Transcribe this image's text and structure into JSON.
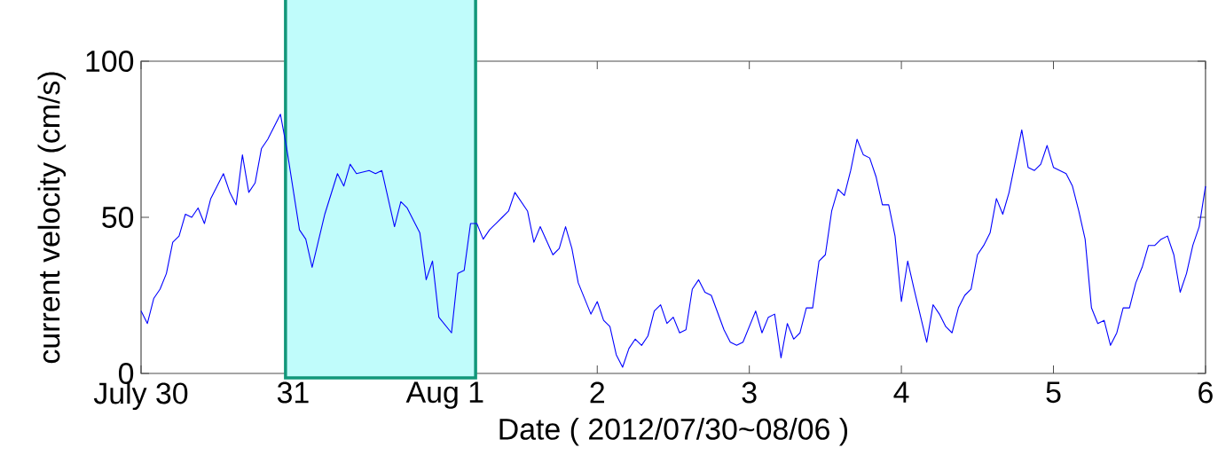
{
  "chart_data": {
    "type": "line",
    "xlabel": "Date ( 2012/07/30~08/06 )",
    "ylabel": "current velocity (cm/s)",
    "xlim": [
      "2012-07-30",
      "2012-08-06"
    ],
    "ylim": [
      0,
      100
    ],
    "xticks": [
      {
        "value": "2012-07-30",
        "label": "July 30"
      },
      {
        "value": "2012-07-31",
        "label": "31"
      },
      {
        "value": "2012-08-01",
        "label": "Aug 1"
      },
      {
        "value": "2012-08-02",
        "label": "2"
      },
      {
        "value": "2012-08-03",
        "label": "3"
      },
      {
        "value": "2012-08-04",
        "label": "4"
      },
      {
        "value": "2012-08-05",
        "label": "5"
      },
      {
        "value": "2012-08-06",
        "label": "6"
      }
    ],
    "yticks": [
      0,
      50,
      100
    ],
    "grid": false,
    "bands": [
      {
        "axis": "x",
        "from": "2012-07-30T22:48",
        "to": "2012-08-01T04:48",
        "color": "#12977a"
      }
    ],
    "series": [
      {
        "color": "#0000ff",
        "x": [
          "2012-07-30T00:00",
          "2012-07-30T01:00",
          "2012-07-30T02:00",
          "2012-07-30T03:00",
          "2012-07-30T04:00",
          "2012-07-30T05:00",
          "2012-07-30T06:00",
          "2012-07-30T07:00",
          "2012-07-30T08:00",
          "2012-07-30T09:00",
          "2012-07-30T10:00",
          "2012-07-30T11:00",
          "2012-07-30T13:00",
          "2012-07-30T14:00",
          "2012-07-30T15:00",
          "2012-07-30T16:00",
          "2012-07-30T17:00",
          "2012-07-30T18:00",
          "2012-07-30T19:00",
          "2012-07-30T20:00",
          "2012-07-30T22:00",
          "2012-07-30T23:00",
          "2012-07-31T01:00",
          "2012-07-31T02:00",
          "2012-07-31T03:00",
          "2012-07-31T05:00",
          "2012-07-31T07:00",
          "2012-07-31T08:00",
          "2012-07-31T09:00",
          "2012-07-31T10:00",
          "2012-07-31T12:00",
          "2012-07-31T13:00",
          "2012-07-31T14:00",
          "2012-07-31T16:00",
          "2012-07-31T17:00",
          "2012-07-31T18:00",
          "2012-07-31T20:00",
          "2012-07-31T21:00",
          "2012-07-31T22:00",
          "2012-07-31T23:00",
          "2012-08-01T01:00",
          "2012-08-01T02:00",
          "2012-08-01T03:00",
          "2012-08-01T04:00",
          "2012-08-01T05:00",
          "2012-08-01T06:00",
          "2012-08-01T07:00",
          "2012-08-01T08:00",
          "2012-08-01T09:00",
          "2012-08-01T10:00",
          "2012-08-01T11:00",
          "2012-08-01T13:00",
          "2012-08-01T14:00",
          "2012-08-01T15:00",
          "2012-08-01T17:00",
          "2012-08-01T18:00",
          "2012-08-01T19:00",
          "2012-08-01T20:00",
          "2012-08-01T21:00",
          "2012-08-01T23:00",
          "2012-08-02T00:00",
          "2012-08-02T01:00",
          "2012-08-02T02:00",
          "2012-08-02T03:00",
          "2012-08-02T04:00",
          "2012-08-02T05:00",
          "2012-08-02T06:00",
          "2012-08-02T07:00",
          "2012-08-02T08:00",
          "2012-08-02T09:00",
          "2012-08-02T10:00",
          "2012-08-02T11:00",
          "2012-08-02T12:00",
          "2012-08-02T13:00",
          "2012-08-02T14:00",
          "2012-08-02T15:00",
          "2012-08-02T16:00",
          "2012-08-02T17:00",
          "2012-08-02T18:00",
          "2012-08-02T20:00",
          "2012-08-02T21:00",
          "2012-08-02T22:00",
          "2012-08-02T23:00",
          "2012-08-03T01:00",
          "2012-08-03T02:00",
          "2012-08-03T03:00",
          "2012-08-03T04:00",
          "2012-08-03T05:00",
          "2012-08-03T06:00",
          "2012-08-03T07:00",
          "2012-08-03T08:00",
          "2012-08-03T09:00",
          "2012-08-03T10:00",
          "2012-08-03T11:00",
          "2012-08-03T12:00",
          "2012-08-03T13:00",
          "2012-08-03T14:00",
          "2012-08-03T15:00",
          "2012-08-03T16:00",
          "2012-08-03T17:00",
          "2012-08-03T18:00",
          "2012-08-03T19:00",
          "2012-08-03T20:00",
          "2012-08-03T21:00",
          "2012-08-03T22:00",
          "2012-08-03T23:00",
          "2012-08-04T00:00",
          "2012-08-04T01:00",
          "2012-08-04T02:00",
          "2012-08-04T04:00",
          "2012-08-04T05:00",
          "2012-08-04T06:00",
          "2012-08-04T07:00",
          "2012-08-04T08:00",
          "2012-08-04T09:00",
          "2012-08-04T10:00",
          "2012-08-04T11:00",
          "2012-08-04T12:00",
          "2012-08-04T13:00",
          "2012-08-04T14:00",
          "2012-08-04T15:00",
          "2012-08-04T16:00",
          "2012-08-04T17:00",
          "2012-08-04T19:00",
          "2012-08-04T20:00",
          "2012-08-04T21:00",
          "2012-08-04T22:00",
          "2012-08-04T23:00",
          "2012-08-05T00:00",
          "2012-08-05T02:00",
          "2012-08-05T03:00",
          "2012-08-05T04:00",
          "2012-08-05T05:00",
          "2012-08-05T06:00",
          "2012-08-05T07:00",
          "2012-08-05T08:00",
          "2012-08-05T09:00",
          "2012-08-05T10:00",
          "2012-08-05T11:00",
          "2012-08-05T12:00",
          "2012-08-05T13:00",
          "2012-08-05T14:00",
          "2012-08-05T15:00",
          "2012-08-05T16:00",
          "2012-08-05T17:00",
          "2012-08-05T18:00",
          "2012-08-05T19:00",
          "2012-08-05T20:00",
          "2012-08-05T21:00",
          "2012-08-05T22:00",
          "2012-08-05T23:00",
          "2012-08-06T00:00"
        ],
        "values": [
          20,
          16,
          24,
          27,
          32,
          42,
          44,
          51,
          50,
          53,
          48,
          56,
          64,
          58,
          54,
          70,
          58,
          61,
          72,
          75,
          83,
          72,
          46,
          43,
          34,
          51,
          64,
          60,
          67,
          64,
          65,
          64,
          65,
          47,
          55,
          53,
          45,
          30,
          36,
          18,
          13,
          32,
          33,
          48,
          48,
          43,
          46,
          48,
          50,
          52,
          58,
          52,
          42,
          47,
          38,
          40,
          47,
          40,
          29,
          19,
          23,
          17,
          15,
          6,
          2,
          8,
          11,
          9,
          12,
          20,
          22,
          16,
          18,
          13,
          14,
          27,
          30,
          26,
          25,
          14,
          10,
          9,
          10,
          20,
          13,
          18,
          19,
          5,
          16,
          11,
          13,
          21,
          21,
          36,
          38,
          52,
          59,
          57,
          65,
          75,
          70,
          69,
          63,
          54,
          54,
          44,
          23,
          36,
          27,
          10,
          22,
          19,
          15,
          13,
          21,
          25,
          27,
          38,
          41,
          45,
          56,
          51,
          58,
          78,
          66,
          65,
          67,
          73,
          66,
          64,
          60,
          52,
          43,
          21,
          16,
          17,
          9,
          13,
          21,
          21,
          29,
          34,
          41,
          41,
          43,
          44,
          38,
          26,
          32,
          41,
          47,
          60
        ]
      }
    ]
  }
}
